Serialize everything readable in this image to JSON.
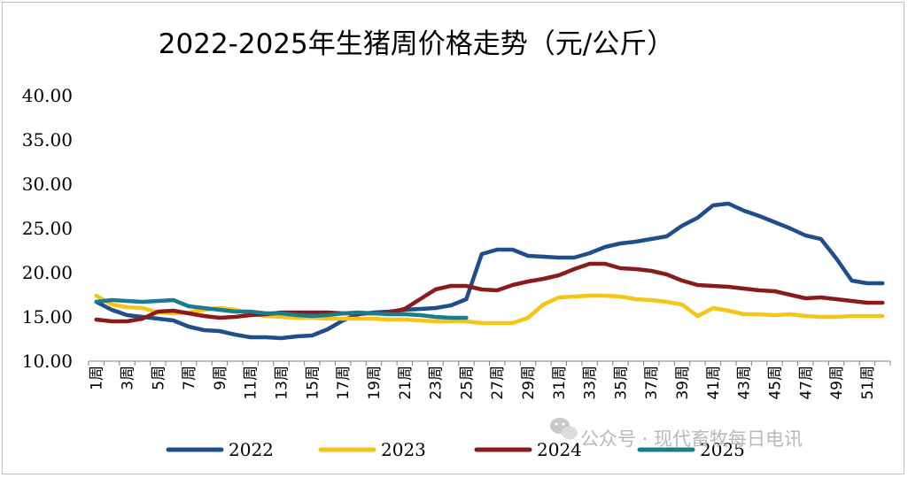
{
  "chart_data": {
    "type": "line",
    "title": "2022-2025年生猪周价格走势（元/公斤）",
    "xlabel": "",
    "ylabel": "",
    "ylim": [
      10,
      40
    ],
    "yticks": [
      "10.00",
      "15.00",
      "20.00",
      "25.00",
      "30.00",
      "35.00",
      "40.00"
    ],
    "x_tick_labels": [
      "1周",
      "3周",
      "5周",
      "7周",
      "9周",
      "11周",
      "13周",
      "15周",
      "17周",
      "19周",
      "21周",
      "23周",
      "25周",
      "27周",
      "29周",
      "31周",
      "33周",
      "35周",
      "37周",
      "39周",
      "41周",
      "43周",
      "45周",
      "47周",
      "49周",
      "51周"
    ],
    "x_weeks": [
      1,
      2,
      3,
      4,
      5,
      6,
      7,
      8,
      9,
      10,
      11,
      12,
      13,
      14,
      15,
      16,
      17,
      18,
      19,
      20,
      21,
      22,
      23,
      24,
      25,
      26,
      27,
      28,
      29,
      30,
      31,
      32,
      33,
      34,
      35,
      36,
      37,
      38,
      39,
      40,
      41,
      42,
      43,
      44,
      45,
      46,
      47,
      48,
      49,
      50,
      51,
      52
    ],
    "grid": false,
    "legend_position": "bottom",
    "series": [
      {
        "name": "2022",
        "color": "#1f4e8c",
        "values": [
          16.7,
          15.8,
          15.2,
          15.0,
          14.8,
          14.6,
          13.9,
          13.5,
          13.4,
          13.0,
          12.7,
          12.7,
          12.6,
          12.8,
          12.9,
          13.6,
          14.6,
          15.3,
          15.5,
          15.6,
          15.8,
          15.9,
          16.0,
          16.3,
          17.0,
          22.1,
          22.6,
          22.6,
          21.9,
          21.8,
          21.7,
          21.7,
          22.2,
          22.9,
          23.3,
          23.5,
          23.8,
          24.1,
          25.3,
          26.2,
          27.6,
          27.8,
          27.0,
          26.4,
          25.7,
          25.0,
          24.2,
          23.8,
          21.6,
          19.1,
          18.8,
          18.8
        ]
      },
      {
        "name": "2023",
        "color": "#f5c518",
        "values": [
          17.4,
          16.4,
          16.1,
          16.0,
          15.5,
          15.4,
          15.5,
          15.8,
          16.0,
          15.8,
          15.4,
          15.1,
          15.0,
          14.9,
          14.9,
          14.8,
          14.8,
          14.8,
          14.8,
          14.7,
          14.7,
          14.6,
          14.5,
          14.5,
          14.5,
          14.3,
          14.3,
          14.3,
          14.9,
          16.4,
          17.2,
          17.3,
          17.4,
          17.4,
          17.3,
          17.0,
          16.9,
          16.7,
          16.4,
          15.1,
          16.0,
          15.7,
          15.3,
          15.3,
          15.2,
          15.3,
          15.1,
          15.0,
          15.0,
          15.1,
          15.1,
          15.1
        ]
      },
      {
        "name": "2024",
        "color": "#8b1a1a",
        "values": [
          14.7,
          14.5,
          14.5,
          14.8,
          15.6,
          15.7,
          15.4,
          15.1,
          14.9,
          15.0,
          15.2,
          15.3,
          15.5,
          15.5,
          15.5,
          15.5,
          15.4,
          15.4,
          15.4,
          15.5,
          15.9,
          17.0,
          18.1,
          18.5,
          18.5,
          18.1,
          18.0,
          18.6,
          19.0,
          19.3,
          19.7,
          20.4,
          21.0,
          21.0,
          20.5,
          20.4,
          20.2,
          19.8,
          19.1,
          18.6,
          18.5,
          18.4,
          18.2,
          18.0,
          17.9,
          17.5,
          17.1,
          17.2,
          17.0,
          16.8,
          16.6,
          16.6
        ]
      },
      {
        "name": "2025",
        "color": "#1b7b8f",
        "values": [
          16.7,
          16.9,
          16.8,
          16.7,
          16.8,
          16.9,
          16.2,
          16.0,
          15.8,
          15.6,
          15.6,
          15.4,
          15.4,
          15.2,
          15.1,
          15.2,
          15.4,
          15.5,
          15.4,
          15.3,
          15.3,
          15.2,
          15.0,
          14.9,
          14.9
        ]
      }
    ],
    "watermark": "公众号 · 现代畜牧每日电讯"
  }
}
